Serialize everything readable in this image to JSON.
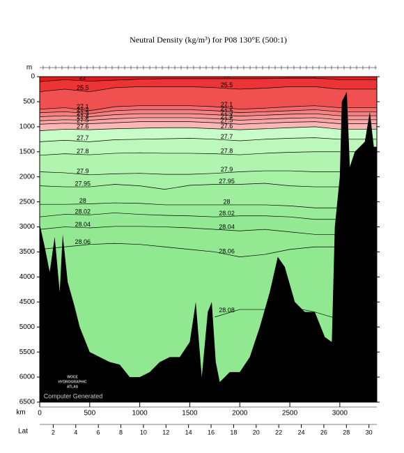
{
  "chart_data": {
    "type": "section",
    "title": "Neutral Density (kg/m³) for P08 130°E (500:1)",
    "y_label": "m",
    "x_label": "km",
    "lat_label": "Lat",
    "xlim": [
      0,
      3370
    ],
    "ylim": [
      0,
      6500
    ],
    "xticks": [
      0,
      500,
      1000,
      1500,
      2000,
      2500,
      3000
    ],
    "yticks": [
      0,
      500,
      1000,
      1500,
      2000,
      2500,
      3000,
      3500,
      4000,
      4500,
      5000,
      5500,
      6000,
      6500
    ],
    "latlim": [
      0.8,
      30.7
    ],
    "latticks": [
      2,
      4,
      6,
      8,
      10,
      12,
      14,
      16,
      18,
      20,
      22,
      24,
      26,
      28,
      30
    ],
    "surface_color": "#e31a1c",
    "x": [
      0,
      250,
      500,
      750,
      1000,
      1250,
      1500,
      1750,
      2000,
      2250,
      2500,
      2750,
      3000,
      3370
    ],
    "series": [
      {
        "name": "22",
        "color": "#ec3436",
        "values": [
          100,
          60,
          90,
          70,
          50,
          40,
          40,
          40,
          40,
          40,
          30,
          30,
          60,
          60
        ]
      },
      {
        "name": "25.5",
        "color": "#f05050",
        "values": [
          300,
          250,
          300,
          220,
          200,
          200,
          200,
          220,
          250,
          230,
          200,
          200,
          250,
          250
        ]
      },
      {
        "name": "27.1",
        "color": "#f36a6a",
        "values": [
          650,
          620,
          680,
          600,
          580,
          580,
          580,
          600,
          650,
          630,
          600,
          580,
          620,
          620
        ]
      },
      {
        "name": "27.2",
        "color": "#f58080",
        "values": [
          720,
          700,
          740,
          680,
          660,
          660,
          660,
          680,
          720,
          700,
          680,
          660,
          700,
          700
        ]
      },
      {
        "name": "27.3",
        "color": "#f79494",
        "values": [
          800,
          780,
          800,
          760,
          740,
          740,
          740,
          760,
          790,
          770,
          750,
          740,
          780,
          780
        ]
      },
      {
        "name": "27.4",
        "color": "#f9a6a6",
        "values": [
          880,
          860,
          870,
          840,
          820,
          820,
          820,
          840,
          870,
          850,
          830,
          820,
          860,
          860
        ]
      },
      {
        "name": "27.5",
        "color": "#fbb6b6",
        "values": [
          950,
          930,
          940,
          920,
          900,
          900,
          900,
          920,
          950,
          930,
          910,
          900,
          940,
          940
        ]
      },
      {
        "name": "27.6",
        "color": "#c8fcc8",
        "values": [
          1080,
          1050,
          1060,
          1040,
          1030,
          1020,
          1020,
          1040,
          1060,
          1040,
          1020,
          1000,
          1050,
          1050
        ]
      },
      {
        "name": "27.7",
        "color": "#bcf8bc",
        "values": [
          1300,
          1270,
          1300,
          1260,
          1250,
          1240,
          1230,
          1250,
          1280,
          1250,
          1230,
          1220,
          1250,
          1250
        ]
      },
      {
        "name": "27.8",
        "color": "#b0f4b0",
        "values": [
          1570,
          1540,
          1560,
          1530,
          1520,
          1530,
          1530,
          1540,
          1560,
          1530,
          1510,
          1500,
          1500,
          1500
        ]
      },
      {
        "name": "27.9",
        "color": "#a6f1a6",
        "values": [
          1900,
          1920,
          1960,
          1940,
          1930,
          1950,
          1950,
          1930,
          1900,
          1880,
          1880,
          1900,
          1900,
          1900
        ]
      },
      {
        "name": "27.95",
        "color": "#9eee9e",
        "values": [
          2180,
          2200,
          2200,
          2150,
          2180,
          2250,
          2170,
          2150,
          2150,
          2130,
          2180,
          2200,
          2200,
          2200
        ]
      },
      {
        "name": "28",
        "color": "#98ec98",
        "values": [
          2550,
          2550,
          2540,
          2520,
          2530,
          2560,
          2560,
          2560,
          2560,
          2560,
          2580,
          2620,
          2620,
          2620
        ]
      },
      {
        "name": "28.02",
        "color": "#94ea94",
        "values": [
          2800,
          2750,
          2760,
          2720,
          2750,
          2770,
          2780,
          2800,
          2780,
          2780,
          2800,
          2850,
          2850,
          2850
        ]
      },
      {
        "name": "28.04",
        "color": "#92e992",
        "values": [
          3050,
          3000,
          3020,
          2990,
          2990,
          3000,
          3020,
          3050,
          3080,
          3050,
          3100,
          3150,
          3150,
          3150
        ]
      },
      {
        "name": "28.06",
        "color": "#90e890",
        "values": [
          3450,
          3400,
          3350,
          3330,
          3350,
          3400,
          3450,
          3500,
          3600,
          3550,
          3450,
          3400,
          3400,
          3400
        ]
      },
      {
        "name": "28.08",
        "color": "#90e890",
        "values": [
          null,
          null,
          null,
          null,
          null,
          null,
          null,
          4800,
          4650,
          4650,
          4600,
          4700,
          4850,
          4850
        ]
      }
    ],
    "bathymetry": {
      "color": "#000000",
      "x": [
        0,
        50,
        100,
        150,
        200,
        230,
        280,
        350,
        400,
        500,
        600,
        700,
        800,
        900,
        1000,
        1100,
        1200,
        1300,
        1400,
        1500,
        1560,
        1620,
        1680,
        1720,
        1760,
        1800,
        1900,
        2000,
        2100,
        2200,
        2300,
        2380,
        2450,
        2550,
        2650,
        2750,
        2850,
        2920,
        2950,
        3000,
        3020,
        3070,
        3100,
        3150,
        3250,
        3300,
        3340,
        3370
      ],
      "values": [
        2950,
        3400,
        3900,
        3200,
        4300,
        3150,
        4100,
        4600,
        5000,
        5500,
        5600,
        5700,
        5750,
        6000,
        6000,
        5900,
        5700,
        5600,
        5600,
        5300,
        4500,
        6000,
        4700,
        4500,
        5700,
        6100,
        5900,
        5900,
        5600,
        5000,
        4300,
        3600,
        3800,
        4500,
        4700,
        4700,
        5200,
        5300,
        3000,
        2000,
        500,
        300,
        1800,
        1500,
        1300,
        700,
        1400,
        1400
      ]
    },
    "annotations": [
      "WOCE",
      "HYDROGRAPHIC",
      "ATLAS",
      "Computer Generated"
    ]
  }
}
